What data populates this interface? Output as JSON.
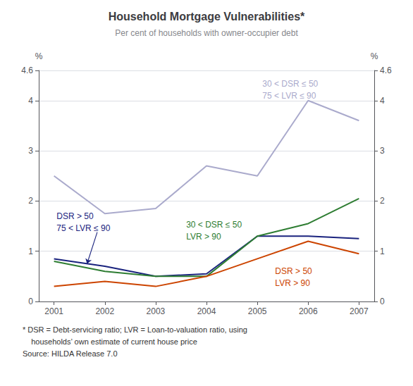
{
  "chart_data": {
    "type": "line",
    "title": "Household Mortgage Vulnerabilities*",
    "subtitle": "Per cent of households with owner-occupier debt",
    "notes": [
      "* DSR = Debt-servicing ratio; LVR = Loan-to-valuation ratio, using",
      "    households’ own estimate of current house price",
      "Source: HILDA Release 7.0"
    ],
    "x": [
      2001,
      2002,
      2003,
      2004,
      2005,
      2006,
      2007
    ],
    "xlim": [
      2000.7,
      2007.3
    ],
    "xticks": [
      2001,
      2002,
      2003,
      2004,
      2005,
      2006,
      2007
    ],
    "ylabel": "%",
    "ylim": [
      0,
      4.6
    ],
    "yticks": [
      0,
      1,
      2,
      3,
      4
    ],
    "y2label": "%",
    "y2lim": [
      0,
      4.6
    ],
    "y2ticks": [
      0,
      1,
      2,
      3,
      4
    ],
    "grid": true,
    "series": [
      {
        "color": "#aaaacc",
        "values": [
          2.5,
          1.75,
          1.85,
          2.7,
          2.5,
          4.0,
          3.6
        ]
      },
      {
        "color": "#1a237e",
        "values": [
          0.85,
          0.7,
          0.5,
          0.55,
          1.3,
          1.3,
          1.25
        ]
      },
      {
        "color": "#2e7d32",
        "values": [
          0.8,
          0.6,
          0.5,
          0.5,
          1.3,
          1.55,
          2.05
        ]
      },
      {
        "color": "#cc4400",
        "values": [
          0.3,
          0.4,
          0.3,
          0.5,
          0.85,
          1.2,
          0.95
        ]
      }
    ],
    "annotations": [
      [
        "30 < DSR ≤ 50",
        "75 < LVR ≤ 90"
      ],
      [
        "DSR > 50",
        "75 < LVR ≤ 90"
      ],
      [
        "30 < DSR ≤ 50",
        "LVR > 90"
      ],
      [
        "DSR > 50",
        "LVR > 90"
      ]
    ]
  }
}
